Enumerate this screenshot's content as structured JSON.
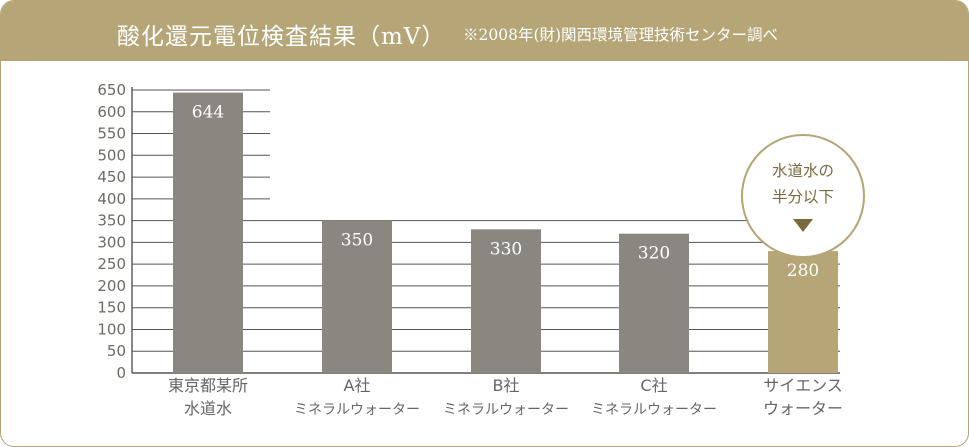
{
  "header": {
    "title": "酸化還元電位検査結果（mV）",
    "note": "※2008年(財)関西環境管理技術センター調べ"
  },
  "callout": {
    "line1": "水道水の",
    "line2": "半分以下",
    "arrow_icon": "down-triangle-icon"
  },
  "colors": {
    "header_bg": "#b5a577",
    "bar_gray": "#898780",
    "bar_gold": "#b5a577",
    "highlight_label": "#b59a55"
  },
  "chart_data": {
    "type": "bar",
    "ylim": [
      0,
      650
    ],
    "yticks": [
      0,
      50,
      100,
      150,
      200,
      250,
      300,
      350,
      400,
      450,
      500,
      550,
      600,
      650
    ],
    "grid": true,
    "categories": [
      [
        "東京都某所",
        "水道水"
      ],
      [
        "A社",
        "ミネラルウォーター"
      ],
      [
        "B社",
        "ミネラルウォーター"
      ],
      [
        "C社",
        "ミネラルウォーター"
      ],
      [
        "サイエンス",
        "ウォーター"
      ]
    ],
    "values": [
      644,
      350,
      330,
      320,
      280
    ],
    "value_labels": [
      "644",
      "350",
      "330",
      "320",
      "280"
    ],
    "highlight_index": 4
  }
}
